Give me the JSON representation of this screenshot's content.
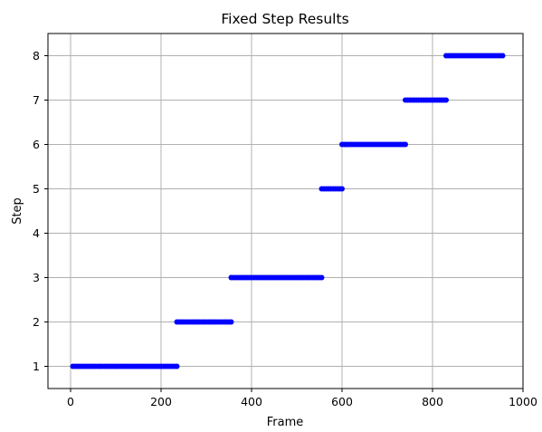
{
  "chart_data": {
    "type": "scatter",
    "title": "Fixed Step Results",
    "xlabel": "Frame",
    "ylabel": "Step",
    "xlim": [
      -50,
      1000
    ],
    "ylim": [
      0.5,
      8.5
    ],
    "xticks": [
      0,
      200,
      400,
      600,
      800,
      1000
    ],
    "yticks": [
      1,
      2,
      3,
      4,
      5,
      6,
      7,
      8
    ],
    "grid": true,
    "marker_color": "#0000ff",
    "segments": [
      {
        "step": 1,
        "frame_start": 5,
        "frame_end": 235
      },
      {
        "step": 2,
        "frame_start": 235,
        "frame_end": 355
      },
      {
        "step": 3,
        "frame_start": 355,
        "frame_end": 555
      },
      {
        "step": 5,
        "frame_start": 555,
        "frame_end": 600
      },
      {
        "step": 6,
        "frame_start": 600,
        "frame_end": 740
      },
      {
        "step": 7,
        "frame_start": 740,
        "frame_end": 830
      },
      {
        "step": 8,
        "frame_start": 830,
        "frame_end": 955
      }
    ]
  }
}
